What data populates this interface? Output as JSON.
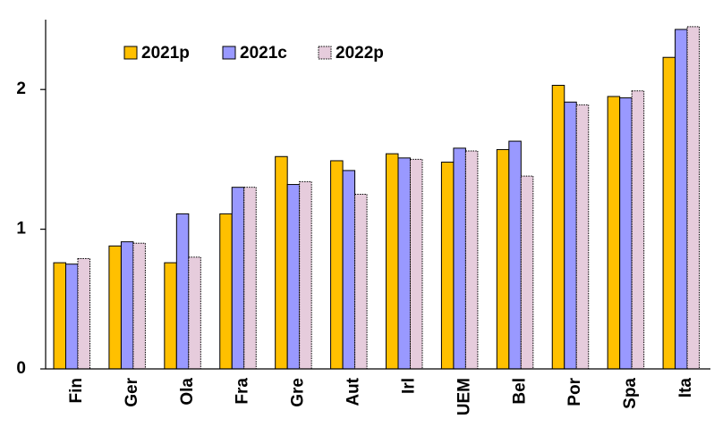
{
  "chart_data": {
    "type": "bar",
    "title": "",
    "xlabel": "",
    "ylabel": "",
    "ylim": [
      0,
      2.5
    ],
    "yticks": [
      0,
      1,
      2
    ],
    "ytick_labels": [
      "0",
      "1",
      "2"
    ],
    "grid": false,
    "legend_position": "top-left",
    "categories": [
      "Fin",
      "Ger",
      "Ola",
      "Fra",
      "Gre",
      "Aut",
      "Irl",
      "UEM",
      "Bel",
      "Por",
      "Spa",
      "Ita"
    ],
    "series": [
      {
        "name": "2021p",
        "color": "#FFC000",
        "values": [
          0.76,
          0.88,
          0.76,
          1.11,
          1.52,
          1.49,
          1.54,
          1.48,
          1.57,
          2.03,
          1.95,
          2.23
        ]
      },
      {
        "name": "2021c",
        "color": "#9999FF",
        "values": [
          0.75,
          0.91,
          1.11,
          1.3,
          1.32,
          1.42,
          1.51,
          1.58,
          1.63,
          1.91,
          1.94,
          2.43
        ]
      },
      {
        "name": "2022p",
        "color": "#E6CCDC",
        "values": [
          0.79,
          0.9,
          0.8,
          1.3,
          1.34,
          1.25,
          1.5,
          1.56,
          1.38,
          1.89,
          1.99,
          2.45
        ]
      }
    ]
  }
}
